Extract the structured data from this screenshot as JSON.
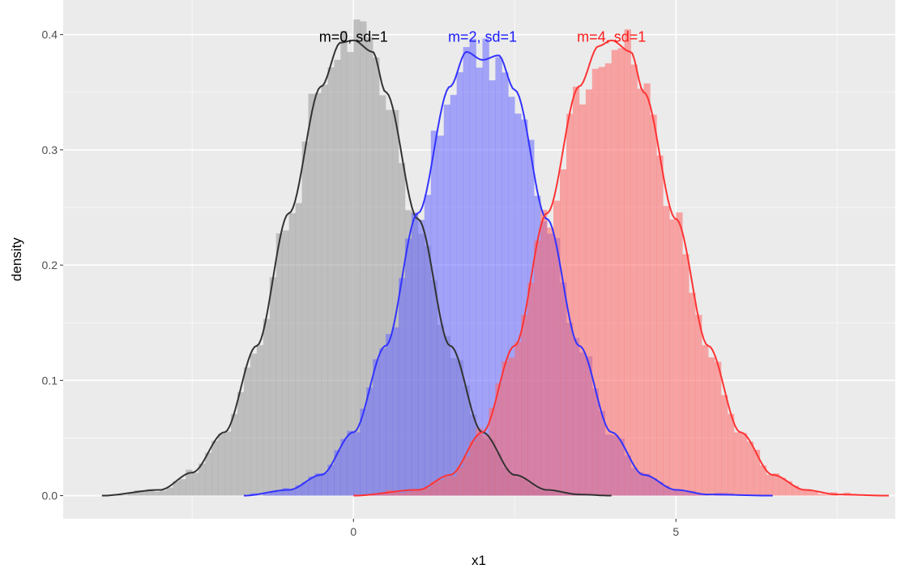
{
  "chart_data": {
    "type": "histogram-density",
    "xlabel": "x1",
    "ylabel": "density",
    "xlim": [
      -4.5,
      8.4
    ],
    "ylim": [
      -0.02,
      0.43
    ],
    "x_ticks": [
      0,
      5
    ],
    "x_minor_ticks": [
      -2.5,
      2.5,
      7.5
    ],
    "y_ticks": [
      0.0,
      0.1,
      0.2,
      0.3,
      0.4
    ],
    "y_tick_labels": [
      "0.0",
      "0.1",
      "0.2",
      "0.3",
      "0.4"
    ],
    "grid": true,
    "bin_width": 0.1,
    "series": [
      {
        "mean": 0,
        "sd": 1,
        "color": "#333333",
        "fill": "#999999",
        "density_x": [
          -3.9,
          -3.0,
          -2.5,
          -2.0,
          -1.5,
          -1.0,
          -0.5,
          -0.2,
          0.0,
          0.3,
          0.5,
          1.0,
          1.5,
          2.0,
          2.5,
          3.0,
          3.5,
          4.0
        ],
        "density_y": [
          0.0,
          0.005,
          0.02,
          0.055,
          0.13,
          0.245,
          0.355,
          0.393,
          0.395,
          0.385,
          0.35,
          0.24,
          0.13,
          0.055,
          0.018,
          0.005,
          0.001,
          0.0
        ]
      },
      {
        "mean": 2,
        "sd": 1,
        "color": "#3333ff",
        "fill": "#6666ff",
        "density_x": [
          -1.7,
          -1.0,
          -0.5,
          0.0,
          0.5,
          1.0,
          1.5,
          1.75,
          2.0,
          2.25,
          2.5,
          3.0,
          3.5,
          4.0,
          4.5,
          5.0,
          5.5,
          6.5
        ],
        "density_y": [
          0.0,
          0.005,
          0.018,
          0.055,
          0.13,
          0.245,
          0.355,
          0.385,
          0.378,
          0.382,
          0.352,
          0.24,
          0.13,
          0.055,
          0.018,
          0.005,
          0.001,
          0.0
        ]
      },
      {
        "mean": 4,
        "sd": 1,
        "color": "#ff3333",
        "fill": "#ff6666",
        "density_x": [
          0.0,
          1.0,
          1.5,
          2.0,
          2.5,
          3.0,
          3.5,
          3.8,
          4.0,
          4.3,
          4.5,
          5.0,
          5.5,
          6.0,
          6.5,
          7.0,
          7.5,
          8.3
        ],
        "density_y": [
          0.0,
          0.005,
          0.018,
          0.055,
          0.13,
          0.245,
          0.355,
          0.39,
          0.395,
          0.385,
          0.35,
          0.24,
          0.13,
          0.055,
          0.018,
          0.005,
          0.001,
          0.0
        ]
      }
    ],
    "annotations": [
      {
        "text": "m=0, sd=1",
        "x": 0,
        "y": 0.398,
        "color": "#000000"
      },
      {
        "text": "m=2, sd=1",
        "x": 2,
        "y": 0.398,
        "color": "#1a1aff"
      },
      {
        "text": "m=4, sd=1",
        "x": 4,
        "y": 0.398,
        "color": "#ff1a1a"
      }
    ]
  }
}
